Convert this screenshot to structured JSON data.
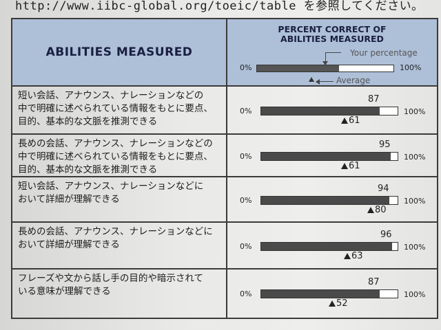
{
  "header_text": "http://www.iibc-global.org/toeic/table を参照してください。",
  "table": {
    "left_header": "ABILITIES MEASURED",
    "right_header_line1": "PERCENT CORRECT OF",
    "right_header_line2": "ABILITIES MEASURED",
    "legend": {
      "zero_label": "0%",
      "hundred_label": "100%",
      "your_label": "Your percentage",
      "average_label": "Average",
      "example_fill": 0.6,
      "example_average": 0.4
    },
    "rows": [
      {
        "lines": [
          "短い会話、アナウンス、ナレーションなどの",
          "中で明確に述べられている情報をもとに要点、",
          "目的、基本的な文脈を推測できる"
        ],
        "score": "87",
        "average": "61",
        "zero_label": "0%",
        "hundred_label": "100%"
      },
      {
        "lines": [
          "長めの会話、アナウンス、ナレーションなどの",
          "中で明確に述べられている情報をもとに要点、",
          "目的、基本的な文脈を推測できる"
        ],
        "score": "95",
        "average": "61",
        "zero_label": "0%",
        "hundred_label": "100%"
      },
      {
        "lines": [
          "短い会話、アナウンス、ナレーションなどに",
          "おいて詳細が理解できる"
        ],
        "score": "94",
        "average": "80",
        "zero_label": "0%",
        "hundred_label": "100%"
      },
      {
        "lines": [
          "長めの会話、アナウンス、ナレーションなどに",
          "おいて詳細が理解できる"
        ],
        "score": "96",
        "average": "63",
        "zero_label": "0%",
        "hundred_label": "100%"
      },
      {
        "lines": [
          "フレーズや文から話し手の目的や暗示されて",
          "いる意味が理解できる"
        ],
        "score": "87",
        "average": "52",
        "zero_label": "0%",
        "hundred_label": "100%"
      }
    ]
  }
}
